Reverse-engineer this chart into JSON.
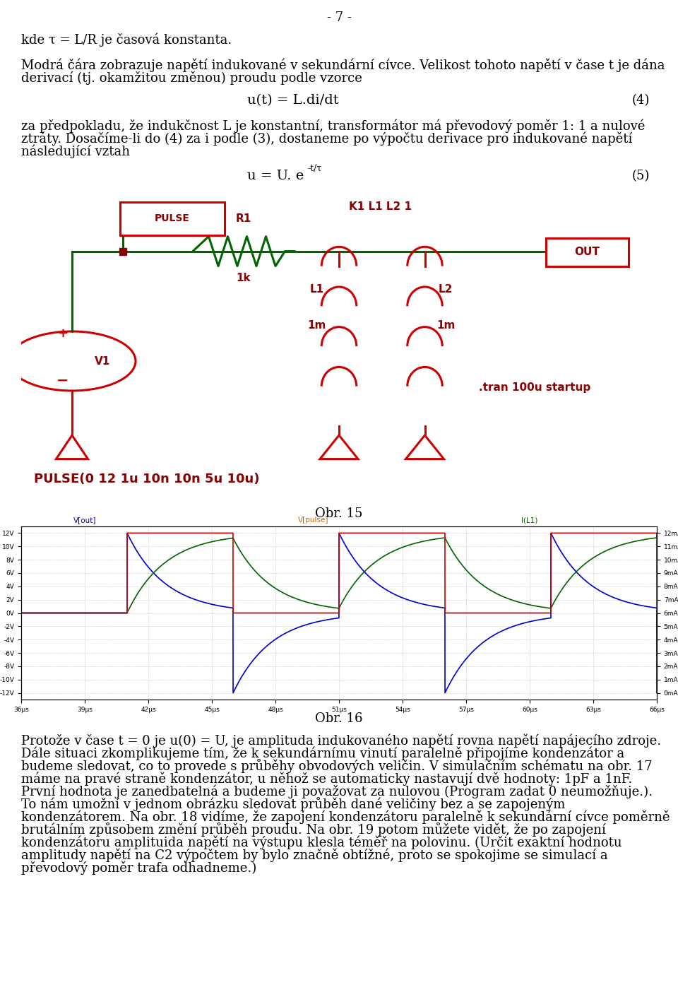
{
  "page_number": "- 7 -",
  "background_color": "#ffffff",
  "text_color": "#000000",
  "RED": "#CC0000",
  "GREEN": "#006400",
  "DARKRED": "#8B0000",
  "graph_red": "#cc0000",
  "graph_green": "#006400",
  "graph_blue": "#0000cc",
  "line1": "kde τ = L/R je časová konstanta.",
  "line2a": "Modrá čára zobrazuje napětí indukované v sekundární cívce. Velikost tohoto napětí v čase t je dána",
  "line2b": "derivací (tj. okamžitou změnou) proudu podle vzorce",
  "formula4": "u(t) = L.di/dt",
  "formula4_num": "(4)",
  "line3a": "za předpokladu, že indukčnost L je konstantní, transformátor má převodový poměr 1: 1 a nulové",
  "line3b": "ztráty. Dosačíme-li do (4) za i podle (3), dostaneme po výpočtu derivace pro indukované napětí",
  "line3c": "následující vztah",
  "formula5a": "u = U. e",
  "formula5b": "-t/τ",
  "formula5_num": "(5)",
  "obr15": "Obr. 15",
  "obr16": "Obr. 16",
  "circuit_k_label": "K1 L1 L2 1",
  "circuit_tran": ".tran 100u startup",
  "circuit_pulse": "PULSE(0 12 1u 10n 10n 5u 10u)",
  "bottom_lines": [
    "Protože v čase t = 0 je u(0) = U, je amplituda indukovaného napětí rovna napětí napájecího zdroje.",
    "Dále situaci zkomplikujeme tím, že k sekundárnímu vinutí paralelně připojíme kondenzátor a",
    "budeme sledovat, co to provede s průběhy obvodových veličin. V simulačním schématu na obr. 17",
    "máme na pravé straně kondenzátor, u něhož se automaticky nastavují dvě hodnoty: 1pF a 1nF.",
    "První hodnota je zanedbatelná a budeme ji považovat za nulovou (Program zadat 0 neumožňuje.).",
    "To nám umožní v jednom obrázku sledovat průběh dané veličiny bez a se zapojeným",
    "kondenzátorem. Na obr. 18 vidíme, že zapojení kondenzátoru paralelně k sekundární cívce poměrně",
    "brutálním způsobem změní průběh proudu. Na obr. 19 potom můžete vidět, že po zapojení",
    "kondenzátoru amplituida napětí na výstupu klesla téměř na polovinu. (Určit exaktní hodnotu",
    "amplitudy napětí na C2 výpočtem by bylo značně obtížné, proto se spokojime se simulací a",
    "převodový poměr trafa odhadneme.)"
  ]
}
